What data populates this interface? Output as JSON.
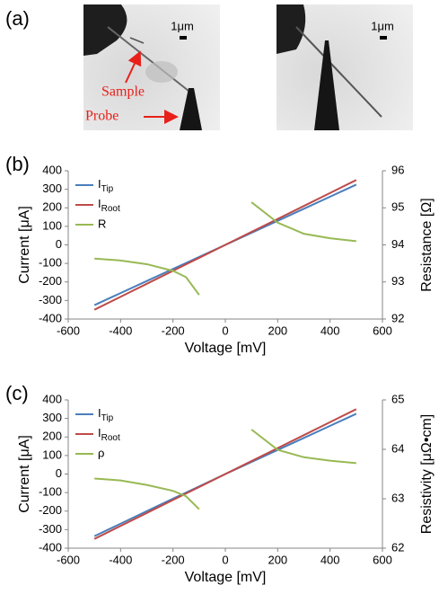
{
  "panel_a": {
    "label": "(a)",
    "scale_bars": [
      "1μm",
      "1μm"
    ],
    "annotations": [
      "Sample",
      "Probe"
    ]
  },
  "chart_data": [
    {
      "type": "line",
      "panel_label": "(b)",
      "xlabel": "Voltage [mV]",
      "ylabel": "Current [μA]",
      "y2label": "Resistance [Ω]",
      "x": [
        -500,
        -400,
        -300,
        -200,
        -150,
        -100,
        0,
        100,
        200,
        300,
        400,
        500
      ],
      "xlim": [
        -600,
        600
      ],
      "xticks": [
        -600,
        -400,
        -200,
        0,
        200,
        400,
        600
      ],
      "ylim": [
        -400,
        400
      ],
      "yticks": [
        -400,
        -300,
        -200,
        -100,
        0,
        100,
        200,
        300,
        400
      ],
      "y2lim": [
        92,
        96
      ],
      "y2ticks": [
        92,
        93,
        94,
        95,
        96
      ],
      "series": [
        {
          "name": "ITip",
          "color": "#4a7ebb",
          "values": [
            -325,
            -260,
            -195,
            -130,
            -97.5,
            -65,
            0,
            65,
            130,
            195,
            260,
            325
          ]
        },
        {
          "name": "IRoot",
          "color": "#be4b48",
          "values": [
            -350,
            -280,
            -210,
            -140,
            -105,
            -70,
            0,
            70,
            140,
            210,
            280,
            350
          ]
        },
        {
          "name": "R",
          "color": "#98b954",
          "axis": "y2",
          "values": [
            93.63,
            93.58,
            93.48,
            93.3,
            93.13,
            92.65,
            null,
            95.15,
            94.6,
            94.3,
            94.18,
            94.1
          ]
        }
      ]
    },
    {
      "type": "line",
      "panel_label": "(c)",
      "xlabel": "Voltage [mV]",
      "ylabel": "Current [μA]",
      "y2label": "Resistivity [μΩ•cm]",
      "x": [
        -500,
        -400,
        -300,
        -200,
        -150,
        -100,
        0,
        100,
        200,
        300,
        400,
        500
      ],
      "xlim": [
        -600,
        600
      ],
      "xticks": [
        -600,
        -400,
        -200,
        0,
        200,
        400,
        600
      ],
      "ylim": [
        -400,
        400
      ],
      "yticks": [
        -400,
        -300,
        -200,
        -100,
        0,
        100,
        200,
        300,
        400
      ],
      "y2lim": [
        62,
        65
      ],
      "y2ticks": [
        62,
        63,
        64,
        65
      ],
      "series": [
        {
          "name": "ITip",
          "color": "#4a7ebb",
          "values": [
            -335,
            -268,
            -200,
            -133,
            -100,
            -67,
            0,
            65,
            130,
            195,
            260,
            325
          ]
        },
        {
          "name": "IRoot",
          "color": "#be4b48",
          "values": [
            -350,
            -280,
            -210,
            -140,
            -105,
            -70,
            0,
            70,
            140,
            210,
            280,
            350
          ]
        },
        {
          "name": "ρ",
          "color": "#98b954",
          "axis": "y2",
          "values": [
            63.41,
            63.37,
            63.28,
            63.16,
            63.05,
            62.79,
            null,
            64.4,
            63.99,
            63.84,
            63.77,
            63.72
          ]
        }
      ]
    }
  ]
}
